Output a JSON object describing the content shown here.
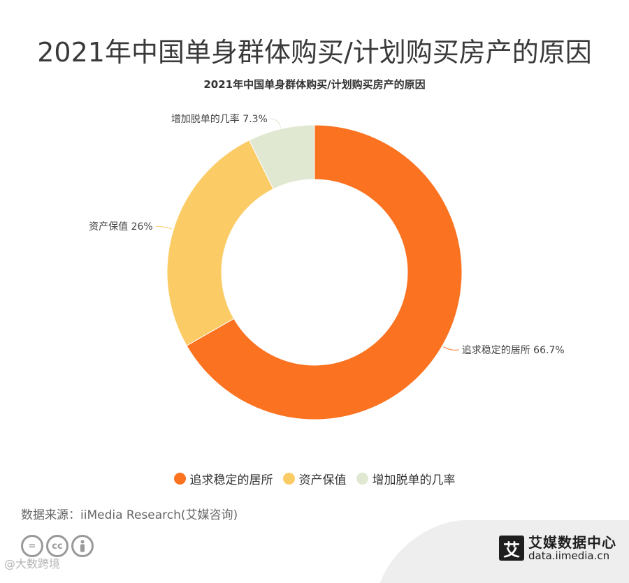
{
  "title": "2021年中国单身群体购买/计划购买房产的原因",
  "chart_data": {
    "type": "pie",
    "title": "2021年中国单身群体购买/计划购买房产的原因",
    "donut": true,
    "categories": [
      "追求稳定的居所",
      "资产保值",
      "增加脱单的几率"
    ],
    "values": [
      66.7,
      26,
      7.3
    ],
    "unit": "%",
    "colors": [
      "#fb7321",
      "#fbcc66",
      "#e1e8d2"
    ],
    "data_labels": [
      "追求稳定的居所 66.7%",
      "资产保值 26%",
      "增加脱单的几率 7.3%"
    ],
    "legend_position": "bottom"
  },
  "legend": [
    {
      "label": "追求稳定的居所",
      "color": "#fb7321"
    },
    {
      "label": "资产保值",
      "color": "#fbcc66"
    },
    {
      "label": "增加脱单的几率",
      "color": "#e1e8d2"
    }
  ],
  "footer": {
    "source": "数据来源：iiMedia Research(艾媒咨询)",
    "license_icons": [
      "equals-icon",
      "cc-icon",
      "person-icon"
    ],
    "watermark": "@大数跨境",
    "brand_logo_char": "艾",
    "brand_name": "艾媒数据中心",
    "brand_url": "data.iimedia.cn"
  }
}
